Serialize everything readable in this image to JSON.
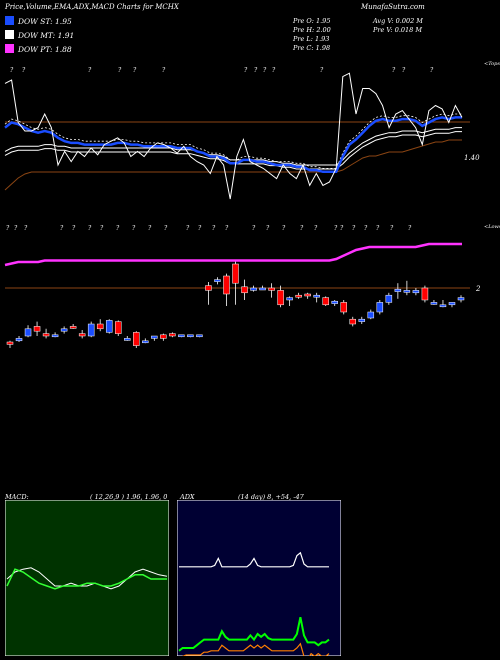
{
  "header": {
    "title": "Price,Volume,EMA,ADX,MACD Charts for MCHX",
    "site": "MunafaSutra.com"
  },
  "legend": [
    {
      "label": "DOW ST: 1.95",
      "color": "#1a4dff"
    },
    {
      "label": "DOW MT: 1.91",
      "color": "#ffffff"
    },
    {
      "label": "DOW PT: 1.88",
      "color": "#ff33ff"
    }
  ],
  "stats": {
    "open": "Pre   O: 1.95",
    "high": "Pre   H: 2.00",
    "low": "Pre   L: 1.93",
    "close": "Pre   C: 1.98",
    "avg_volume": "Avg V: 0.002  M",
    "prev_volume": "Pre   V: 0.018 M"
  },
  "macd": {
    "label": "MACD:",
    "params": "( 12,26,9 ) 1.96,  1.96,  0"
  },
  "adx": {
    "label": "ADX",
    "params": "(14  day) 8,  +54,  -47"
  },
  "chart_data": [
    {
      "type": "line",
      "name": "price",
      "price_axis_label": "1.40",
      "signal_axis_label": "2",
      "top_label": "<Tops",
      "bottom_label": "<Lows",
      "series": [
        {
          "name": "price",
          "color": "#ffffff",
          "values": [
            1.98,
            2.0,
            1.75,
            1.7,
            1.7,
            1.72,
            1.8,
            1.72,
            1.5,
            1.58,
            1.52,
            1.58,
            1.55,
            1.6,
            1.56,
            1.62,
            1.64,
            1.66,
            1.63,
            1.55,
            1.58,
            1.55,
            1.6,
            1.63,
            1.62,
            1.6,
            1.57,
            1.61,
            1.55,
            1.52,
            1.5,
            1.45,
            1.55,
            1.5,
            1.3,
            1.55,
            1.65,
            1.52,
            1.5,
            1.48,
            1.45,
            1.42,
            1.5,
            1.45,
            1.42,
            1.5,
            1.38,
            1.45,
            1.38,
            1.4,
            1.48,
            2.02,
            2.04,
            1.8,
            1.95,
            1.95,
            1.92,
            1.85,
            1.72,
            1.8,
            1.82,
            1.77,
            1.72,
            1.62,
            1.82,
            1.85,
            1.83,
            1.75,
            1.85,
            1.78
          ]
        },
        {
          "name": "DOW ST",
          "color": "#1a4dff",
          "values": [
            1.72,
            1.75,
            1.74,
            1.72,
            1.7,
            1.69,
            1.7,
            1.69,
            1.66,
            1.64,
            1.63,
            1.63,
            1.62,
            1.62,
            1.62,
            1.62,
            1.62,
            1.63,
            1.63,
            1.62,
            1.62,
            1.61,
            1.61,
            1.61,
            1.61,
            1.61,
            1.6,
            1.6,
            1.6,
            1.58,
            1.57,
            1.55,
            1.55,
            1.54,
            1.51,
            1.51,
            1.53,
            1.53,
            1.52,
            1.52,
            1.51,
            1.5,
            1.5,
            1.5,
            1.49,
            1.49,
            1.47,
            1.47,
            1.46,
            1.46,
            1.46,
            1.55,
            1.62,
            1.65,
            1.69,
            1.73,
            1.76,
            1.77,
            1.76,
            1.76,
            1.77,
            1.77,
            1.76,
            1.73,
            1.75,
            1.77,
            1.78,
            1.77,
            1.78,
            1.78
          ]
        },
        {
          "name": "DOW MT",
          "color": "#ffffff",
          "values": [
            1.58,
            1.6,
            1.61,
            1.61,
            1.61,
            1.61,
            1.62,
            1.62,
            1.61,
            1.61,
            1.6,
            1.6,
            1.6,
            1.6,
            1.6,
            1.6,
            1.6,
            1.6,
            1.6,
            1.6,
            1.6,
            1.6,
            1.6,
            1.6,
            1.6,
            1.6,
            1.59,
            1.59,
            1.59,
            1.58,
            1.57,
            1.56,
            1.56,
            1.55,
            1.53,
            1.53,
            1.53,
            1.53,
            1.53,
            1.53,
            1.52,
            1.52,
            1.51,
            1.51,
            1.5,
            1.5,
            1.5,
            1.5,
            1.5,
            1.5,
            1.5,
            1.53,
            1.57,
            1.6,
            1.63,
            1.65,
            1.67,
            1.68,
            1.69,
            1.69,
            1.7,
            1.7,
            1.7,
            1.69,
            1.7,
            1.71,
            1.71,
            1.71,
            1.72,
            1.72
          ]
        },
        {
          "name": "DOW PT",
          "color": "#ff33ff",
          "values": [
            1.72,
            1.73,
            1.74,
            1.74,
            1.74,
            1.74,
            1.75,
            1.75,
            1.75,
            1.75,
            1.75,
            1.75,
            1.75,
            1.75,
            1.75,
            1.75,
            1.75,
            1.75,
            1.75,
            1.75,
            1.75,
            1.75,
            1.75,
            1.75,
            1.75,
            1.75,
            1.75,
            1.75,
            1.75,
            1.75,
            1.75,
            1.75,
            1.75,
            1.75,
            1.75,
            1.75,
            1.75,
            1.75,
            1.75,
            1.75,
            1.75,
            1.75,
            1.75,
            1.75,
            1.75,
            1.75,
            1.75,
            1.75,
            1.75,
            1.75,
            1.76,
            1.78,
            1.8,
            1.82,
            1.83,
            1.84,
            1.84,
            1.84,
            1.84,
            1.84,
            1.84,
            1.84,
            1.84,
            1.85,
            1.86,
            1.86,
            1.86,
            1.86,
            1.86,
            1.86
          ]
        }
      ]
    },
    {
      "type": "candlestick",
      "name": "daily bars",
      "bars": [
        {
          "o": 1.55,
          "c": 1.53,
          "h": 1.56,
          "l": 1.5,
          "up": false
        },
        {
          "o": 1.56,
          "c": 1.58,
          "h": 1.6,
          "l": 1.55,
          "up": true
        },
        {
          "o": 1.6,
          "c": 1.66,
          "h": 1.69,
          "l": 1.59,
          "up": true
        },
        {
          "o": 1.68,
          "c": 1.64,
          "h": 1.72,
          "l": 1.6,
          "up": false
        },
        {
          "o": 1.62,
          "c": 1.6,
          "h": 1.66,
          "l": 1.58,
          "up": false
        },
        {
          "o": 1.61,
          "c": 1.61,
          "h": 1.63,
          "l": 1.59,
          "up": true
        },
        {
          "o": 1.64,
          "c": 1.66,
          "h": 1.68,
          "l": 1.62,
          "up": true
        },
        {
          "o": 1.68,
          "c": 1.68,
          "h": 1.7,
          "l": 1.66,
          "up": false
        },
        {
          "o": 1.62,
          "c": 1.6,
          "h": 1.65,
          "l": 1.58,
          "up": false
        },
        {
          "o": 1.6,
          "c": 1.7,
          "h": 1.72,
          "l": 1.59,
          "up": true
        },
        {
          "o": 1.7,
          "c": 1.66,
          "h": 1.74,
          "l": 1.64,
          "up": false
        },
        {
          "o": 1.63,
          "c": 1.73,
          "h": 1.74,
          "l": 1.62,
          "up": true
        },
        {
          "o": 1.72,
          "c": 1.62,
          "h": 1.73,
          "l": 1.6,
          "up": false
        },
        {
          "o": 1.58,
          "c": 1.58,
          "h": 1.6,
          "l": 1.56,
          "up": true
        },
        {
          "o": 1.63,
          "c": 1.52,
          "h": 1.64,
          "l": 1.5,
          "up": false
        },
        {
          "o": 1.56,
          "c": 1.56,
          "h": 1.58,
          "l": 1.54,
          "up": true
        },
        {
          "o": 1.58,
          "c": 1.6,
          "h": 1.6,
          "l": 1.56,
          "up": true
        },
        {
          "o": 1.61,
          "c": 1.58,
          "h": 1.62,
          "l": 1.56,
          "up": false
        },
        {
          "o": 1.62,
          "c": 1.6,
          "h": 1.63,
          "l": 1.59,
          "up": false
        },
        {
          "o": 1.6,
          "c": 1.61,
          "h": 1.61,
          "l": 1.59,
          "up": true
        },
        {
          "o": 1.6,
          "c": 1.61,
          "h": 1.61,
          "l": 1.59,
          "up": true
        },
        {
          "o": 1.6,
          "c": 1.61,
          "h": 1.61,
          "l": 1.59,
          "up": true
        },
        {
          "o": 2.02,
          "c": 1.98,
          "h": 2.05,
          "l": 1.86,
          "up": false
        },
        {
          "o": 2.06,
          "c": 2.07,
          "h": 2.09,
          "l": 2.03,
          "up": true
        },
        {
          "o": 2.1,
          "c": 1.95,
          "h": 2.12,
          "l": 1.85,
          "up": false
        },
        {
          "o": 2.2,
          "c": 2.04,
          "h": 2.22,
          "l": 1.86,
          "up": false
        },
        {
          "o": 2.01,
          "c": 1.96,
          "h": 2.07,
          "l": 1.9,
          "up": false
        },
        {
          "o": 1.98,
          "c": 2.0,
          "h": 2.02,
          "l": 1.97,
          "up": true
        },
        {
          "o": 2.0,
          "c": 2.0,
          "h": 2.02,
          "l": 1.99,
          "up": true
        },
        {
          "o": 2.0,
          "c": 1.98,
          "h": 2.04,
          "l": 1.92,
          "up": false
        },
        {
          "o": 1.98,
          "c": 1.86,
          "h": 2.02,
          "l": 1.84,
          "up": false
        },
        {
          "o": 1.9,
          "c": 1.92,
          "h": 1.93,
          "l": 1.85,
          "up": true
        },
        {
          "o": 1.94,
          "c": 1.93,
          "h": 1.96,
          "l": 1.91,
          "up": false
        },
        {
          "o": 1.95,
          "c": 1.94,
          "h": 1.96,
          "l": 1.91,
          "up": false
        },
        {
          "o": 1.94,
          "c": 1.94,
          "h": 1.96,
          "l": 1.88,
          "up": true
        },
        {
          "o": 1.92,
          "c": 1.86,
          "h": 1.93,
          "l": 1.85,
          "up": false
        },
        {
          "o": 1.87,
          "c": 1.89,
          "h": 1.9,
          "l": 1.85,
          "up": true
        },
        {
          "o": 1.88,
          "c": 1.8,
          "h": 1.9,
          "l": 1.78,
          "up": false
        },
        {
          "o": 1.74,
          "c": 1.7,
          "h": 1.76,
          "l": 1.68,
          "up": false
        },
        {
          "o": 1.72,
          "c": 1.74,
          "h": 1.76,
          "l": 1.7,
          "up": true
        },
        {
          "o": 1.75,
          "c": 1.8,
          "h": 1.82,
          "l": 1.74,
          "up": true
        },
        {
          "o": 1.8,
          "c": 1.88,
          "h": 1.9,
          "l": 1.78,
          "up": true
        },
        {
          "o": 1.88,
          "c": 1.94,
          "h": 1.96,
          "l": 1.86,
          "up": true
        },
        {
          "o": 1.97,
          "c": 1.99,
          "h": 2.04,
          "l": 1.91,
          "up": true
        },
        {
          "o": 1.98,
          "c": 1.98,
          "h": 2.06,
          "l": 1.94,
          "up": true
        },
        {
          "o": 1.96,
          "c": 1.98,
          "h": 2.0,
          "l": 1.94,
          "up": true
        },
        {
          "o": 2.0,
          "c": 1.9,
          "h": 2.02,
          "l": 1.88,
          "up": false
        },
        {
          "o": 1.88,
          "c": 1.88,
          "h": 1.9,
          "l": 1.86,
          "up": true
        },
        {
          "o": 1.86,
          "c": 1.86,
          "h": 1.9,
          "l": 1.84,
          "up": true
        },
        {
          "o": 1.86,
          "c": 1.88,
          "h": 1.88,
          "l": 1.84,
          "up": true
        },
        {
          "o": 1.9,
          "c": 1.92,
          "h": 1.94,
          "l": 1.88,
          "up": true
        }
      ]
    },
    {
      "type": "line",
      "name": "MACD",
      "series": [
        {
          "name": "MACD",
          "color": "#ffffff",
          "values": [
            0.55,
            0.6,
            0.62,
            0.63,
            0.6,
            0.55,
            0.5,
            0.5,
            0.52,
            0.5,
            0.5,
            0.52,
            0.5,
            0.48,
            0.5,
            0.55,
            0.6,
            0.62,
            0.6,
            0.58,
            0.57
          ]
        },
        {
          "name": "signal",
          "color": "#33ff33",
          "values": [
            0.5,
            0.62,
            0.6,
            0.56,
            0.52,
            0.5,
            0.48,
            0.5,
            0.5,
            0.5,
            0.52,
            0.52,
            0.5,
            0.5,
            0.52,
            0.55,
            0.58,
            0.58,
            0.55,
            0.55,
            0.55
          ]
        }
      ]
    },
    {
      "type": "line",
      "name": "ADX",
      "series": [
        {
          "name": "ADX",
          "color": "#ffffff",
          "values": [
            8,
            8,
            8,
            8,
            8,
            8,
            8,
            8,
            8,
            8,
            9,
            14,
            8,
            8,
            8,
            8,
            8,
            8,
            8,
            8,
            10,
            14,
            9,
            8,
            8,
            8,
            8,
            8,
            8,
            8,
            8,
            8,
            9,
            16,
            18,
            10,
            8,
            8,
            8,
            8,
            8,
            8,
            8
          ]
        },
        {
          "name": "+DI",
          "color": "#00ff00",
          "values": [
            -52,
            -50,
            -50,
            -50,
            -50,
            -48,
            -46,
            -44,
            -44,
            -44,
            -44,
            -44,
            -38,
            -42,
            -44,
            -44,
            -44,
            -44,
            -44,
            -44,
            -41,
            -44,
            -40,
            -42,
            -40,
            -43,
            -44,
            -44,
            -44,
            -44,
            -44,
            -44,
            -44,
            -40,
            -28,
            -41,
            -46,
            -46,
            -46,
            -48,
            -46,
            -46,
            -44
          ]
        },
        {
          "name": "-DI",
          "color": "#ff7f00",
          "values": [
            -58,
            -56,
            -55,
            -55,
            -55,
            -55,
            -55,
            -53,
            -53,
            -52,
            -52,
            -52,
            -48,
            -50,
            -52,
            -52,
            -52,
            -52,
            -52,
            -50,
            -48,
            -50,
            -48,
            -50,
            -48,
            -50,
            -52,
            -52,
            -52,
            -52,
            -52,
            -52,
            -52,
            -50,
            -47,
            -56,
            -58,
            -54,
            -56,
            -54,
            -56,
            -56,
            -54
          ]
        }
      ]
    }
  ]
}
